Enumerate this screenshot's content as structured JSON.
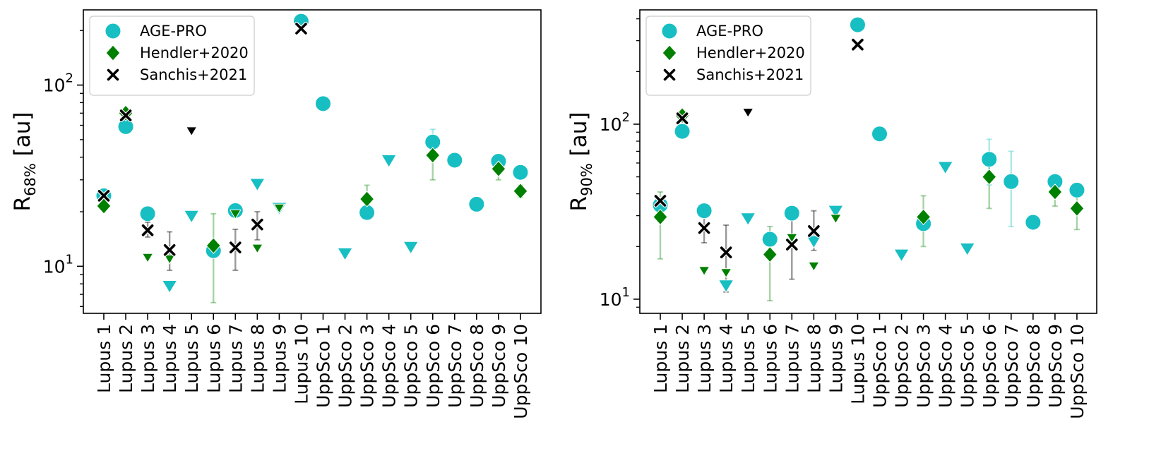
{
  "chart_data": [
    {
      "type": "scatter",
      "yscale": "log",
      "ylim": [
        5.5,
        260
      ],
      "ylabel": {
        "main": "R",
        "sub": "68%",
        "unit": " [au]"
      },
      "yticks": [
        {
          "value": 10,
          "base": "10",
          "exp": "1"
        },
        {
          "value": 100,
          "base": "10",
          "exp": "2"
        }
      ],
      "categories": [
        "Lupus 1",
        "Lupus 2",
        "Lupus 3",
        "Lupus 4",
        "Lupus 5",
        "Lupus 6",
        "Lupus 7",
        "Lupus 8",
        "Lupus 9",
        "Lupus 10",
        "UppSco 1",
        "UppSco 2",
        "UppSco 3",
        "UppSco 4",
        "UppSco 5",
        "UppSco 6",
        "UppSco 7",
        "UppSco 8",
        "UppSco 9",
        "UppSco 10"
      ],
      "legend": {
        "position": "upper-left",
        "entries": [
          "AGE-PRO",
          "Hendler+2020",
          "Sanchis+2021"
        ]
      },
      "series": [
        {
          "name": "AGE-PRO",
          "color": "#17bfc3",
          "marker": "circle",
          "points": [
            {
              "i": 0,
              "y": 24.5
            },
            {
              "i": 1,
              "y": 59
            },
            {
              "i": 2,
              "y": 19.5
            },
            {
              "i": 3,
              "y": 7.8,
              "upper_limit": true
            },
            {
              "i": 4,
              "y": 19,
              "upper_limit": true
            },
            {
              "i": 5,
              "y": 12.2
            },
            {
              "i": 6,
              "y": 20.3
            },
            {
              "i": 7,
              "y": 28.5,
              "upper_limit": true
            },
            {
              "i": 8,
              "y": 21,
              "upper_limit": true
            },
            {
              "i": 9,
              "y": 225
            },
            {
              "i": 10,
              "y": 79
            },
            {
              "i": 11,
              "y": 11.8,
              "upper_limit": true
            },
            {
              "i": 12,
              "y": 19.8
            },
            {
              "i": 13,
              "y": 38.5,
              "upper_limit": true
            },
            {
              "i": 14,
              "y": 12.8,
              "upper_limit": true
            },
            {
              "i": 15,
              "y": 48.5,
              "err": [
                40,
                57
              ]
            },
            {
              "i": 16,
              "y": 38.5
            },
            {
              "i": 17,
              "y": 22
            },
            {
              "i": 18,
              "y": 38
            },
            {
              "i": 19,
              "y": 33
            }
          ]
        },
        {
          "name": "Hendler+2020",
          "color": "#008000",
          "marker": "diamond",
          "points": [
            {
              "i": 0,
              "y": 21.5
            },
            {
              "i": 1,
              "y": 70
            },
            {
              "i": 2,
              "y": 11.2,
              "upper_limit": true
            },
            {
              "i": 3,
              "y": 11,
              "upper_limit": true
            },
            {
              "i": 5,
              "y": 13,
              "err": [
                6.3,
                19.5
              ]
            },
            {
              "i": 6,
              "y": 19.5,
              "upper_limit": true
            },
            {
              "i": 7,
              "y": 12.6,
              "upper_limit": true
            },
            {
              "i": 8,
              "y": 21,
              "upper_limit": true
            },
            {
              "i": 12,
              "y": 23.5,
              "err": [
                20,
                28
              ]
            },
            {
              "i": 15,
              "y": 41,
              "err": [
                30,
                50
              ]
            },
            {
              "i": 18,
              "y": 34.5,
              "err": [
                30,
                39
              ]
            },
            {
              "i": 19,
              "y": 26,
              "err": [
                24,
                28
              ]
            }
          ]
        },
        {
          "name": "Sanchis+2021",
          "color": "#000000",
          "marker": "x",
          "points": [
            {
              "i": 0,
              "y": 24.5
            },
            {
              "i": 1,
              "y": 68
            },
            {
              "i": 2,
              "y": 15.8,
              "err": [
                14.5,
                17.5
              ]
            },
            {
              "i": 3,
              "y": 12.3,
              "err": [
                9.5,
                15.5
              ]
            },
            {
              "i": 4,
              "y": 56,
              "upper_limit": true
            },
            {
              "i": 6,
              "y": 12.7,
              "err": [
                9.5,
                16
              ]
            },
            {
              "i": 7,
              "y": 17,
              "err": [
                14,
                20
              ]
            },
            {
              "i": 9,
              "y": 205
            }
          ]
        }
      ]
    },
    {
      "type": "scatter",
      "yscale": "log",
      "ylim": [
        8.3,
        450
      ],
      "ylabel": {
        "main": "R",
        "sub": "90%",
        "unit": " [au]"
      },
      "yticks": [
        {
          "value": 10,
          "base": "10",
          "exp": "1"
        },
        {
          "value": 100,
          "base": "10",
          "exp": "2"
        }
      ],
      "categories": [
        "Lupus 1",
        "Lupus 2",
        "Lupus 3",
        "Lupus 4",
        "Lupus 5",
        "Lupus 6",
        "Lupus 7",
        "Lupus 8",
        "Lupus 9",
        "Lupus 10",
        "UppSco 1",
        "UppSco 2",
        "UppSco 3",
        "UppSco 4",
        "UppSco 5",
        "UppSco 6",
        "UppSco 7",
        "UppSco 8",
        "UppSco 9",
        "UppSco 10"
      ],
      "legend": {
        "position": "upper-left",
        "entries": [
          "AGE-PRO",
          "Hendler+2020",
          "Sanchis+2021"
        ]
      },
      "series": [
        {
          "name": "AGE-PRO",
          "color": "#17bfc3",
          "marker": "circle",
          "points": [
            {
              "i": 0,
              "y": 34.5
            },
            {
              "i": 1,
              "y": 91
            },
            {
              "i": 2,
              "y": 32
            },
            {
              "i": 3,
              "y": 12,
              "upper_limit": true
            },
            {
              "i": 4,
              "y": 29,
              "upper_limit": true
            },
            {
              "i": 5,
              "y": 22
            },
            {
              "i": 6,
              "y": 31
            },
            {
              "i": 7,
              "y": 21.5,
              "upper_limit": true
            },
            {
              "i": 8,
              "y": 32,
              "upper_limit": true
            },
            {
              "i": 9,
              "y": 370
            },
            {
              "i": 10,
              "y": 88
            },
            {
              "i": 11,
              "y": 18,
              "upper_limit": true
            },
            {
              "i": 12,
              "y": 27
            },
            {
              "i": 13,
              "y": 57,
              "upper_limit": true
            },
            {
              "i": 14,
              "y": 19.5,
              "upper_limit": true
            },
            {
              "i": 15,
              "y": 63,
              "err": [
                45,
                82
              ]
            },
            {
              "i": 16,
              "y": 47,
              "err": [
                26,
                70
              ]
            },
            {
              "i": 17,
              "y": 27.5
            },
            {
              "i": 18,
              "y": 47
            },
            {
              "i": 19,
              "y": 42
            }
          ]
        },
        {
          "name": "Hendler+2020",
          "color": "#008000",
          "marker": "diamond",
          "points": [
            {
              "i": 0,
              "y": 29.5,
              "err": [
                17,
                41
              ]
            },
            {
              "i": 1,
              "y": 112
            },
            {
              "i": 2,
              "y": 14.6,
              "upper_limit": true
            },
            {
              "i": 3,
              "y": 14.2,
              "upper_limit": true
            },
            {
              "i": 5,
              "y": 18,
              "err": [
                9.8,
                26
              ]
            },
            {
              "i": 6,
              "y": 22.5,
              "upper_limit": true
            },
            {
              "i": 7,
              "y": 15.5,
              "upper_limit": true
            },
            {
              "i": 8,
              "y": 29,
              "upper_limit": true
            },
            {
              "i": 12,
              "y": 29.5,
              "err": [
                20,
                39
              ]
            },
            {
              "i": 15,
              "y": 50,
              "err": [
                33,
                67
              ]
            },
            {
              "i": 18,
              "y": 41,
              "err": [
                34,
                48
              ]
            },
            {
              "i": 19,
              "y": 33,
              "err": [
                25,
                41
              ]
            }
          ]
        },
        {
          "name": "Sanchis+2021",
          "color": "#000000",
          "marker": "x",
          "points": [
            {
              "i": 0,
              "y": 36.5
            },
            {
              "i": 1,
              "y": 108
            },
            {
              "i": 2,
              "y": 25.5,
              "err": [
                21,
                30
              ]
            },
            {
              "i": 3,
              "y": 18.5,
              "err": [
                11,
                26.5
              ]
            },
            {
              "i": 4,
              "y": 117,
              "upper_limit": true
            },
            {
              "i": 6,
              "y": 20.5,
              "err": [
                13,
                29
              ]
            },
            {
              "i": 7,
              "y": 24.5,
              "err": [
                19,
                32
              ]
            },
            {
              "i": 9,
              "y": 285
            }
          ]
        }
      ]
    }
  ]
}
